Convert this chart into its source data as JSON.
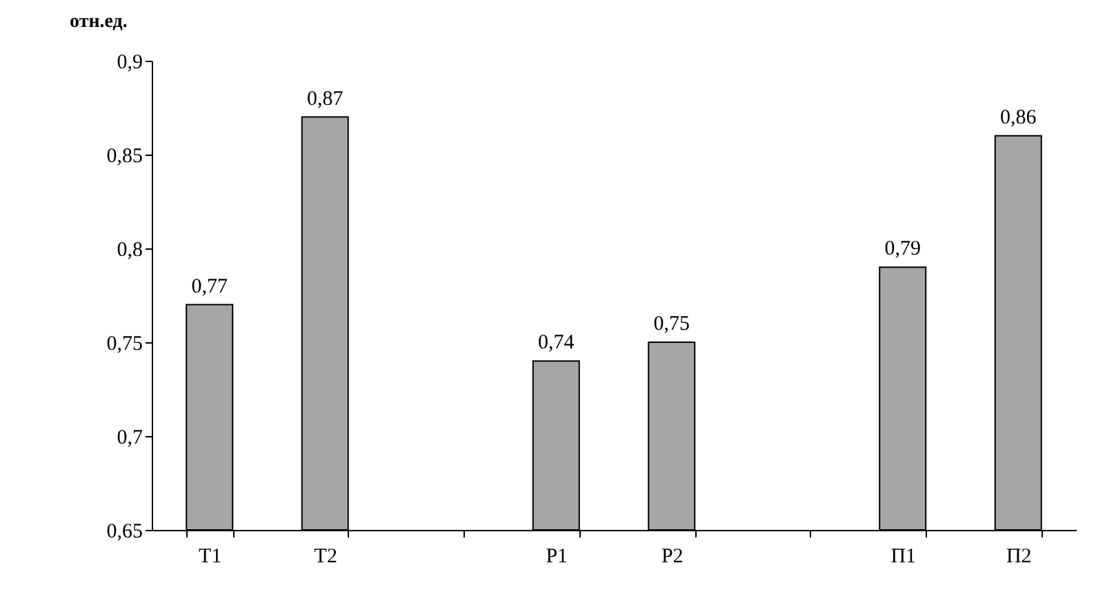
{
  "chart_data": {
    "type": "bar",
    "ylabel": "отн.ед.",
    "categories": [
      "T1",
      "T2",
      null,
      "P1",
      "P2",
      null,
      "П1",
      "П2"
    ],
    "values": [
      0.77,
      0.87,
      null,
      0.74,
      0.75,
      null,
      0.79,
      0.86
    ],
    "value_labels": [
      "0,77",
      "0,87",
      null,
      "0,74",
      "0,75",
      null,
      "0,79",
      "0,86"
    ],
    "color": "#a6a6a6",
    "ylim": [
      0.65,
      0.9
    ],
    "yticks": [
      {
        "value": 0.65,
        "label": "0,65"
      },
      {
        "value": 0.7,
        "label": "0,7"
      },
      {
        "value": 0.75,
        "label": "0,75"
      },
      {
        "value": 0.8,
        "label": "0,8"
      },
      {
        "value": 0.85,
        "label": "0,85"
      },
      {
        "value": 0.9,
        "label": "0,9"
      }
    ],
    "grid": false
  }
}
